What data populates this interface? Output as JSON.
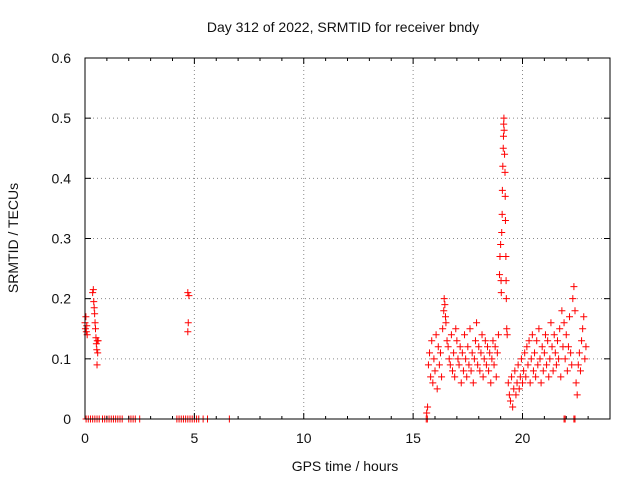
{
  "chart_data": {
    "type": "scatter",
    "title": "Day 312 of 2022, SRMTID for receiver bndy",
    "xlabel": "GPS time / hours",
    "ylabel": "SRMTID / TECUs",
    "xlim": [
      0,
      24
    ],
    "ylim": [
      0,
      0.6
    ],
    "xticks": [
      0,
      5,
      10,
      15,
      20
    ],
    "xtick_labels": [
      "0",
      "5",
      "10",
      "15",
      "20"
    ],
    "yticks": [
      0,
      0.1,
      0.2,
      0.3,
      0.4,
      0.5,
      0.6
    ],
    "ytick_labels": [
      "0",
      "0.1",
      "0.2",
      "0.3",
      "0.4",
      "0.5",
      "0.6"
    ],
    "grid": true,
    "marker": "plus",
    "series": [
      {
        "name": "SRMTID",
        "color": "#ff0000",
        "points": [
          [
            0.0,
            0.16
          ],
          [
            0.02,
            0.15
          ],
          [
            0.04,
            0.17
          ],
          [
            0.06,
            0.145
          ],
          [
            0.08,
            0.155
          ],
          [
            0.1,
            0.14
          ],
          [
            0.35,
            0.21
          ],
          [
            0.38,
            0.215
          ],
          [
            0.4,
            0.195
          ],
          [
            0.42,
            0.185
          ],
          [
            0.44,
            0.175
          ],
          [
            0.46,
            0.16
          ],
          [
            0.48,
            0.15
          ],
          [
            0.5,
            0.135
          ],
          [
            0.52,
            0.125
          ],
          [
            0.54,
            0.115
          ],
          [
            0.55,
            0.09
          ],
          [
            0.56,
            0.13
          ],
          [
            0.58,
            0.11
          ],
          [
            0.6,
            0.13
          ],
          [
            0.05,
            0.0
          ],
          [
            0.15,
            0.0
          ],
          [
            0.25,
            0.0
          ],
          [
            0.35,
            0.0
          ],
          [
            0.45,
            0.0
          ],
          [
            0.55,
            0.0
          ],
          [
            0.65,
            0.0
          ],
          [
            0.8,
            0.0
          ],
          [
            0.9,
            0.0
          ],
          [
            1.0,
            0.0
          ],
          [
            1.1,
            0.0
          ],
          [
            1.2,
            0.0
          ],
          [
            1.3,
            0.0
          ],
          [
            1.4,
            0.0
          ],
          [
            1.5,
            0.0
          ],
          [
            1.6,
            0.0
          ],
          [
            1.7,
            0.0
          ],
          [
            2.0,
            0.0
          ],
          [
            2.1,
            0.0
          ],
          [
            2.2,
            0.0
          ],
          [
            2.3,
            0.0
          ],
          [
            2.5,
            0.0
          ],
          [
            4.2,
            0.0
          ],
          [
            4.3,
            0.0
          ],
          [
            4.4,
            0.0
          ],
          [
            4.5,
            0.0
          ],
          [
            4.6,
            0.0
          ],
          [
            4.7,
            0.0
          ],
          [
            4.8,
            0.0
          ],
          [
            4.9,
            0.0
          ],
          [
            5.0,
            0.0
          ],
          [
            5.1,
            0.0
          ],
          [
            5.2,
            0.0
          ],
          [
            5.4,
            0.0
          ],
          [
            5.6,
            0.0
          ],
          [
            6.6,
            0.0
          ],
          [
            4.7,
            0.21
          ],
          [
            4.75,
            0.205
          ],
          [
            4.72,
            0.16
          ],
          [
            4.7,
            0.145
          ],
          [
            15.6,
            0.0
          ],
          [
            15.65,
            0.0
          ],
          [
            15.62,
            0.01
          ],
          [
            15.66,
            0.02
          ],
          [
            15.7,
            0.09
          ],
          [
            15.75,
            0.11
          ],
          [
            15.8,
            0.07
          ],
          [
            15.85,
            0.13
          ],
          [
            15.9,
            0.06
          ],
          [
            15.95,
            0.1
          ],
          [
            16.0,
            0.08
          ],
          [
            16.05,
            0.14
          ],
          [
            16.1,
            0.05
          ],
          [
            16.15,
            0.12
          ],
          [
            16.2,
            0.09
          ],
          [
            16.25,
            0.11
          ],
          [
            16.3,
            0.07
          ],
          [
            16.35,
            0.15
          ],
          [
            16.4,
            0.18
          ],
          [
            16.42,
            0.2
          ],
          [
            16.45,
            0.19
          ],
          [
            16.48,
            0.17
          ],
          [
            16.5,
            0.16
          ],
          [
            16.55,
            0.13
          ],
          [
            16.6,
            0.12
          ],
          [
            16.65,
            0.1
          ],
          [
            16.7,
            0.09
          ],
          [
            16.75,
            0.14
          ],
          [
            16.8,
            0.08
          ],
          [
            16.85,
            0.11
          ],
          [
            16.9,
            0.07
          ],
          [
            16.95,
            0.15
          ],
          [
            17.0,
            0.13
          ],
          [
            17.05,
            0.1
          ],
          [
            17.1,
            0.09
          ],
          [
            17.15,
            0.12
          ],
          [
            17.2,
            0.06
          ],
          [
            17.25,
            0.11
          ],
          [
            17.3,
            0.08
          ],
          [
            17.35,
            0.14
          ],
          [
            17.4,
            0.1
          ],
          [
            17.45,
            0.07
          ],
          [
            17.5,
            0.12
          ],
          [
            17.55,
            0.09
          ],
          [
            17.6,
            0.15
          ],
          [
            17.65,
            0.08
          ],
          [
            17.7,
            0.11
          ],
          [
            17.75,
            0.06
          ],
          [
            17.8,
            0.1
          ],
          [
            17.85,
            0.13
          ],
          [
            17.9,
            0.16
          ],
          [
            17.95,
            0.09
          ],
          [
            18.0,
            0.12
          ],
          [
            18.05,
            0.08
          ],
          [
            18.1,
            0.11
          ],
          [
            18.15,
            0.14
          ],
          [
            18.2,
            0.07
          ],
          [
            18.25,
            0.1
          ],
          [
            18.3,
            0.13
          ],
          [
            18.35,
            0.09
          ],
          [
            18.4,
            0.12
          ],
          [
            18.45,
            0.08
          ],
          [
            18.5,
            0.11
          ],
          [
            18.55,
            0.06
          ],
          [
            18.6,
            0.1
          ],
          [
            18.65,
            0.13
          ],
          [
            18.7,
            0.09
          ],
          [
            18.75,
            0.12
          ],
          [
            18.8,
            0.07
          ],
          [
            18.85,
            0.11
          ],
          [
            18.9,
            0.14
          ],
          [
            18.95,
            0.24
          ],
          [
            18.97,
            0.27
          ],
          [
            19.0,
            0.29
          ],
          [
            19.02,
            0.23
          ],
          [
            19.03,
            0.21
          ],
          [
            19.05,
            0.31
          ],
          [
            19.07,
            0.34
          ],
          [
            19.08,
            0.38
          ],
          [
            19.1,
            0.42
          ],
          [
            19.12,
            0.45
          ],
          [
            19.13,
            0.47
          ],
          [
            19.14,
            0.49
          ],
          [
            19.15,
            0.5
          ],
          [
            19.16,
            0.48
          ],
          [
            19.18,
            0.44
          ],
          [
            19.2,
            0.41
          ],
          [
            19.21,
            0.37
          ],
          [
            19.22,
            0.33
          ],
          [
            19.24,
            0.27
          ],
          [
            19.25,
            0.23
          ],
          [
            19.26,
            0.2
          ],
          [
            19.28,
            0.15
          ],
          [
            19.3,
            0.14
          ],
          [
            19.35,
            0.06
          ],
          [
            19.4,
            0.04
          ],
          [
            19.45,
            0.03
          ],
          [
            19.5,
            0.07
          ],
          [
            19.55,
            0.02
          ],
          [
            19.6,
            0.05
          ],
          [
            19.65,
            0.08
          ],
          [
            19.7,
            0.04
          ],
          [
            19.75,
            0.06
          ],
          [
            19.8,
            0.09
          ],
          [
            19.85,
            0.05
          ],
          [
            19.9,
            0.07
          ],
          [
            19.95,
            0.1
          ],
          [
            20.0,
            0.06
          ],
          [
            20.05,
            0.08
          ],
          [
            20.1,
            0.11
          ],
          [
            20.15,
            0.07
          ],
          [
            20.2,
            0.12
          ],
          [
            20.25,
            0.09
          ],
          [
            20.3,
            0.13
          ],
          [
            20.35,
            0.06
          ],
          [
            20.4,
            0.1
          ],
          [
            20.45,
            0.14
          ],
          [
            20.5,
            0.08
          ],
          [
            20.55,
            0.11
          ],
          [
            20.6,
            0.07
          ],
          [
            20.65,
            0.13
          ],
          [
            20.7,
            0.09
          ],
          [
            20.75,
            0.15
          ],
          [
            20.8,
            0.1
          ],
          [
            20.85,
            0.06
          ],
          [
            20.9,
            0.12
          ],
          [
            20.95,
            0.08
          ],
          [
            21.0,
            0.11
          ],
          [
            21.05,
            0.14
          ],
          [
            21.1,
            0.09
          ],
          [
            21.15,
            0.13
          ],
          [
            21.2,
            0.07
          ],
          [
            21.25,
            0.1
          ],
          [
            21.3,
            0.16
          ],
          [
            21.35,
            0.12
          ],
          [
            21.4,
            0.08
          ],
          [
            21.45,
            0.14
          ],
          [
            21.5,
            0.11
          ],
          [
            21.55,
            0.09
          ],
          [
            21.6,
            0.13
          ],
          [
            21.65,
            0.1
          ],
          [
            21.7,
            0.15
          ],
          [
            21.75,
            0.07
          ],
          [
            21.8,
            0.18
          ],
          [
            21.85,
            0.12
          ],
          [
            21.9,
            0.16
          ],
          [
            21.95,
            0.1
          ],
          [
            22.0,
            0.14
          ],
          [
            22.05,
            0.08
          ],
          [
            22.1,
            0.12
          ],
          [
            22.15,
            0.17
          ],
          [
            22.2,
            0.11
          ],
          [
            22.25,
            0.09
          ],
          [
            22.3,
            0.2
          ],
          [
            22.35,
            0.22
          ],
          [
            22.4,
            0.18
          ],
          [
            22.45,
            0.06
          ],
          [
            22.5,
            0.04
          ],
          [
            22.55,
            0.09
          ],
          [
            22.6,
            0.11
          ],
          [
            22.65,
            0.08
          ],
          [
            22.7,
            0.13
          ],
          [
            22.75,
            0.15
          ],
          [
            22.8,
            0.17
          ],
          [
            22.85,
            0.1
          ],
          [
            22.9,
            0.12
          ],
          [
            22.35,
            0.0
          ],
          [
            22.4,
            0.0
          ],
          [
            21.9,
            0.0
          ],
          [
            21.95,
            0.0
          ]
        ]
      }
    ]
  }
}
